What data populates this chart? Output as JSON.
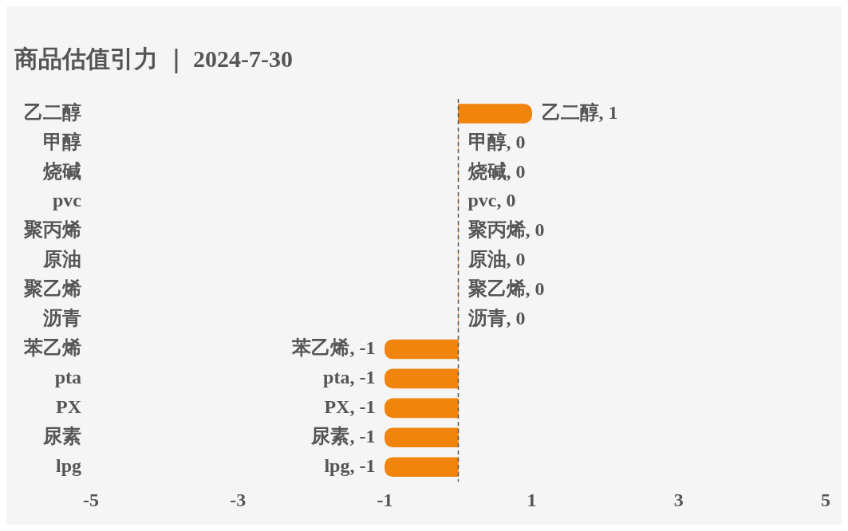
{
  "chart_data": {
    "type": "bar",
    "orientation": "horizontal",
    "title": "商品估值引力 ｜ 2024-7-30",
    "categories": [
      "乙二醇",
      "甲醇",
      "烧碱",
      "pvc",
      "聚丙烯",
      "原油",
      "聚乙烯",
      "沥青",
      "苯乙烯",
      "pta",
      "PX",
      "尿素",
      "lpg"
    ],
    "values": [
      1,
      0,
      0,
      0,
      0,
      0,
      0,
      0,
      -1,
      -1,
      -1,
      -1,
      -1
    ],
    "value_labels": [
      "乙二醇, 1",
      "甲醇, 0",
      "烧碱, 0",
      "pvc, 0",
      "聚丙烯, 0",
      "原油, 0",
      "聚乙烯, 0",
      "沥青, 0",
      "苯乙烯, -1",
      "pta, -1",
      "PX, -1",
      "尿素, -1",
      "lpg, -1"
    ],
    "color": "#f0840c",
    "xlim": [
      -5,
      5
    ],
    "xticks": [
      -5,
      -3,
      -1,
      1,
      3,
      5
    ],
    "grid": false,
    "legend": false,
    "ref_lines": [
      {
        "axis": "x",
        "value": 0,
        "color": "#555555",
        "line_style": "dashed"
      }
    ]
  }
}
